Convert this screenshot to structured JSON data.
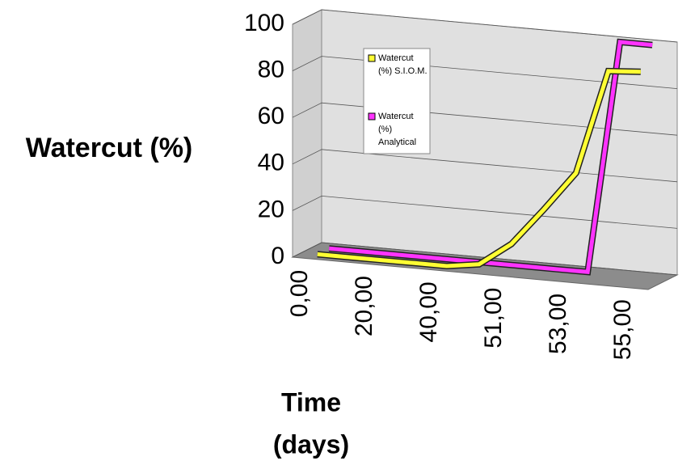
{
  "chart_data": {
    "type": "line3d",
    "y_label": "Watercut (%)",
    "x_label_lines": [
      "Time",
      "(days)"
    ],
    "categories": [
      "0,00",
      null,
      "20,00",
      null,
      "40,00",
      null,
      "51,00",
      null,
      "53,00",
      null,
      "55,00"
    ],
    "ylim": [
      0,
      100
    ],
    "yticks": [
      0,
      20,
      40,
      60,
      80,
      100
    ],
    "grid": true,
    "series": [
      {
        "name": "Watercut (%) S.I.O.M.",
        "color": "#ffff33",
        "values": [
          0,
          0,
          0,
          0,
          0,
          2,
          12,
          28,
          45,
          90,
          91
        ]
      },
      {
        "name": "Watercut (%) Analytical",
        "color": "#ff33ff",
        "values": [
          0,
          0,
          0,
          0,
          0,
          0,
          0,
          0,
          0,
          100,
          100
        ]
      }
    ]
  }
}
